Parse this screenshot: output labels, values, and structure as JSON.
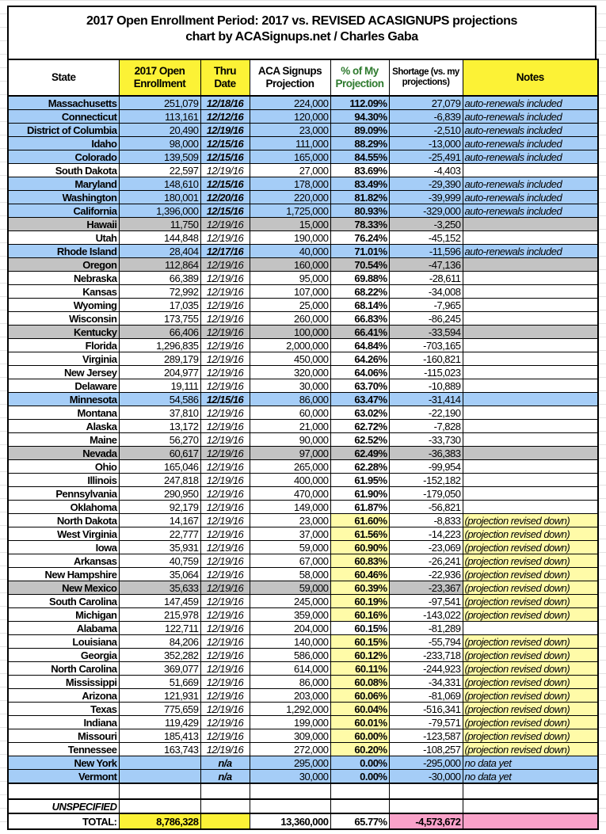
{
  "title": {
    "line1": "2017 Open Enrollment Period: 2017 vs. REVISED ACASIGNUPS projections",
    "line2": "chart by ACASignups.net / Charles Gaba"
  },
  "headers": {
    "state": "State",
    "enrollment": "2017 Open Enrollment",
    "thru": "Thru Date",
    "projection": "ACA Signups Projection",
    "pct": "% of My Projection",
    "shortage": "Shortage (vs. my projections)",
    "notes": "Notes"
  },
  "colors": {
    "blue": "#a5cdf7",
    "gray": "#c3c3c3",
    "header_yellow": "#fcf236",
    "highlight_yellow": "#fffba8",
    "pink": "#f9a2c9",
    "green_text": "#2e7a2e"
  },
  "rows": [
    [
      "Massachusetts",
      "251,079",
      "12/18/16",
      "224,000",
      "112.09%",
      "27,079",
      "auto-renewals included",
      "blue",
      false
    ],
    [
      "Connecticut",
      "113,161",
      "12/12/16",
      "120,000",
      "94.30%",
      "-6,839",
      "auto-renewals included",
      "blue",
      false
    ],
    [
      "District of Columbia",
      "20,490",
      "12/19/16",
      "23,000",
      "89.09%",
      "-2,510",
      "auto-renewals included",
      "blue",
      false
    ],
    [
      "Idaho",
      "98,000",
      "12/15/16",
      "111,000",
      "88.29%",
      "-13,000",
      "auto-renewals included",
      "blue",
      false
    ],
    [
      "Colorado",
      "139,509",
      "12/15/16",
      "165,000",
      "84.55%",
      "-25,491",
      "auto-renewals included",
      "blue",
      false
    ],
    [
      "South Dakota",
      "22,597",
      "12/19/16",
      "27,000",
      "83.69%",
      "-4,403",
      "",
      "white",
      false
    ],
    [
      "Maryland",
      "148,610",
      "12/15/16",
      "178,000",
      "83.49%",
      "-29,390",
      "auto-renewals included",
      "blue",
      false
    ],
    [
      "Washington",
      "180,001",
      "12/20/16",
      "220,000",
      "81.82%",
      "-39,999",
      "auto-renewals included",
      "blue",
      false
    ],
    [
      "California",
      "1,396,000",
      "12/15/16",
      "1,725,000",
      "80.93%",
      "-329,000",
      "auto-renewals included",
      "blue",
      false
    ],
    [
      "Hawaii",
      "11,750",
      "12/19/16",
      "15,000",
      "78.33%",
      "-3,250",
      "",
      "gray",
      false
    ],
    [
      "Utah",
      "144,848",
      "12/19/16",
      "190,000",
      "76.24%",
      "-45,152",
      "",
      "white",
      false
    ],
    [
      "Rhode Island",
      "28,404",
      "12/17/16",
      "40,000",
      "71.01%",
      "-11,596",
      "auto-renewals included",
      "blue",
      false
    ],
    [
      "Oregon",
      "112,864",
      "12/19/16",
      "160,000",
      "70.54%",
      "-47,136",
      "",
      "gray",
      false
    ],
    [
      "Nebraska",
      "66,389",
      "12/19/16",
      "95,000",
      "69.88%",
      "-28,611",
      "",
      "white",
      false
    ],
    [
      "Kansas",
      "72,992",
      "12/19/16",
      "107,000",
      "68.22%",
      "-34,008",
      "",
      "white",
      false
    ],
    [
      "Wyoming",
      "17,035",
      "12/19/16",
      "25,000",
      "68.14%",
      "-7,965",
      "",
      "white",
      false
    ],
    [
      "Wisconsin",
      "173,755",
      "12/19/16",
      "260,000",
      "66.83%",
      "-86,245",
      "",
      "white",
      false
    ],
    [
      "Kentucky",
      "66,406",
      "12/19/16",
      "100,000",
      "66.41%",
      "-33,594",
      "",
      "gray",
      false
    ],
    [
      "Florida",
      "1,296,835",
      "12/19/16",
      "2,000,000",
      "64.84%",
      "-703,165",
      "",
      "white",
      false
    ],
    [
      "Virginia",
      "289,179",
      "12/19/16",
      "450,000",
      "64.26%",
      "-160,821",
      "",
      "white",
      false
    ],
    [
      "New Jersey",
      "204,977",
      "12/19/16",
      "320,000",
      "64.06%",
      "-115,023",
      "",
      "white",
      false
    ],
    [
      "Delaware",
      "19,111",
      "12/19/16",
      "30,000",
      "63.70%",
      "-10,889",
      "",
      "white",
      false
    ],
    [
      "Minnesota",
      "54,586",
      "12/15/16",
      "86,000",
      "63.47%",
      "-31,414",
      "",
      "blue",
      false
    ],
    [
      "Montana",
      "37,810",
      "12/19/16",
      "60,000",
      "63.02%",
      "-22,190",
      "",
      "white",
      false
    ],
    [
      "Alaska",
      "13,172",
      "12/19/16",
      "21,000",
      "62.72%",
      "-7,828",
      "",
      "white",
      false
    ],
    [
      "Maine",
      "56,270",
      "12/19/16",
      "90,000",
      "62.52%",
      "-33,730",
      "",
      "white",
      false
    ],
    [
      "Nevada",
      "60,617",
      "12/19/16",
      "97,000",
      "62.49%",
      "-36,383",
      "",
      "gray",
      false
    ],
    [
      "Ohio",
      "165,046",
      "12/19/16",
      "265,000",
      "62.28%",
      "-99,954",
      "",
      "white",
      false
    ],
    [
      "Illinois",
      "247,818",
      "12/19/16",
      "400,000",
      "61.95%",
      "-152,182",
      "",
      "white",
      false
    ],
    [
      "Pennsylvania",
      "290,950",
      "12/19/16",
      "470,000",
      "61.90%",
      "-179,050",
      "",
      "white",
      false
    ],
    [
      "Oklahoma",
      "92,179",
      "12/19/16",
      "149,000",
      "61.87%",
      "-56,821",
      "",
      "white",
      false
    ],
    [
      "North Dakota",
      "14,167",
      "12/19/16",
      "23,000",
      "61.60%",
      "-8,833",
      "(projection revised down)",
      "white",
      true
    ],
    [
      "West Virginia",
      "22,777",
      "12/19/16",
      "37,000",
      "61.56%",
      "-14,223",
      "(projection revised down)",
      "white",
      true
    ],
    [
      "Iowa",
      "35,931",
      "12/19/16",
      "59,000",
      "60.90%",
      "-23,069",
      "(projection revised down)",
      "white",
      true
    ],
    [
      "Arkansas",
      "40,759",
      "12/19/16",
      "67,000",
      "60.83%",
      "-26,241",
      "(projection revised down)",
      "white",
      true
    ],
    [
      "New Hampshire",
      "35,064",
      "12/19/16",
      "58,000",
      "60.46%",
      "-22,936",
      "(projection revised down)",
      "white",
      true
    ],
    [
      "New Mexico",
      "35,633",
      "12/19/16",
      "59,000",
      "60.39%",
      "-23,367",
      "(projection revised down)",
      "gray",
      true
    ],
    [
      "South Carolina",
      "147,459",
      "12/19/16",
      "245,000",
      "60.19%",
      "-97,541",
      "(projection revised down)",
      "white",
      true
    ],
    [
      "Michigan",
      "215,978",
      "12/19/16",
      "359,000",
      "60.16%",
      "-143,022",
      "(projection revised down)",
      "white",
      true
    ],
    [
      "Alabama",
      "122,711",
      "12/19/16",
      "204,000",
      "60.15%",
      "-81,289",
      "",
      "white",
      false
    ],
    [
      "Louisiana",
      "84,206",
      "12/19/16",
      "140,000",
      "60.15%",
      "-55,794",
      "(projection revised down)",
      "white",
      true
    ],
    [
      "Georgia",
      "352,282",
      "12/19/16",
      "586,000",
      "60.12%",
      "-233,718",
      "(projection revised down)",
      "white",
      true
    ],
    [
      "North Carolina",
      "369,077",
      "12/19/16",
      "614,000",
      "60.11%",
      "-244,923",
      "(projection revised down)",
      "white",
      true
    ],
    [
      "Mississippi",
      "51,669",
      "12/19/16",
      "86,000",
      "60.08%",
      "-34,331",
      "(projection revised down)",
      "white",
      true
    ],
    [
      "Arizona",
      "121,931",
      "12/19/16",
      "203,000",
      "60.06%",
      "-81,069",
      "(projection revised down)",
      "white",
      true
    ],
    [
      "Texas",
      "775,659",
      "12/19/16",
      "1,292,000",
      "60.04%",
      "-516,341",
      "(projection revised down)",
      "white",
      true
    ],
    [
      "Indiana",
      "119,429",
      "12/19/16",
      "199,000",
      "60.01%",
      "-79,571",
      "(projection revised down)",
      "white",
      true
    ],
    [
      "Missouri",
      "185,413",
      "12/19/16",
      "309,000",
      "60.00%",
      "-123,587",
      "(projection revised down)",
      "white",
      true
    ],
    [
      "Tennessee",
      "163,743",
      "12/19/16",
      "272,000",
      "60.20%",
      "-108,257",
      "(projection revised down)",
      "white",
      true
    ],
    [
      "New York",
      "",
      "n/a",
      "295,000",
      "0.00%",
      "-295,000",
      "no data yet",
      "blue",
      false
    ],
    [
      "Vermont",
      "",
      "n/a",
      "30,000",
      "0.00%",
      "-30,000",
      "no data yet",
      "blue",
      false
    ]
  ],
  "unspecified_label": "UNSPECIFIED",
  "total": {
    "label": "TOTAL:",
    "enrollment": "8,786,328",
    "projection": "13,360,000",
    "pct": "65.77%",
    "shortage": "-4,573,672"
  }
}
